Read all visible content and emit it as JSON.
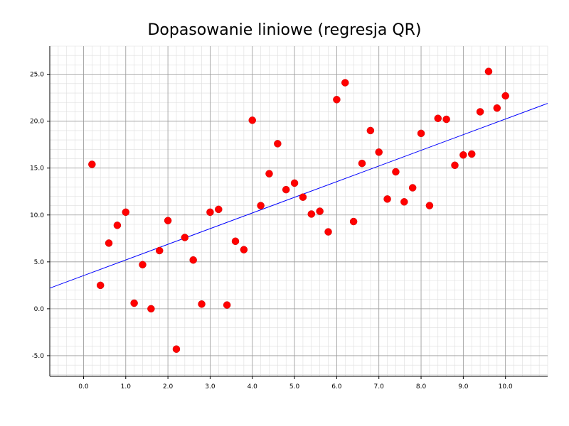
{
  "chart_data": {
    "type": "scatter",
    "title": "Dopasowanie liniowe (regresja QR)",
    "xlabel": "",
    "ylabel": "",
    "xlim": [
      -0.8,
      11.0
    ],
    "ylim": [
      -7.2,
      28.0
    ],
    "grid": true,
    "minor_grid": true,
    "x_ticks": [
      "0.0",
      "1.0",
      "2.0",
      "3.0",
      "4.0",
      "5.0",
      "6.0",
      "7.0",
      "8.0",
      "9.0",
      "10.0"
    ],
    "y_ticks": [
      "-5.0",
      "0.0",
      "5.0",
      "10.0",
      "15.0",
      "20.0",
      "25.0"
    ],
    "colors": {
      "points": "#ff0000",
      "fit_line": "#0000ff",
      "major_grid": "#999999",
      "minor_grid": "#dddddd"
    },
    "series": [
      {
        "kind": "points",
        "x": [
          0.2,
          0.4,
          0.6,
          0.8,
          1.0,
          1.2,
          1.4,
          1.6,
          1.8,
          2.0,
          2.2,
          2.4,
          2.6,
          2.8,
          3.0,
          3.2,
          3.4,
          3.6,
          3.8,
          4.0,
          4.2,
          4.4,
          4.6,
          4.8,
          5.0,
          5.2,
          5.4,
          5.6,
          5.8,
          6.0,
          6.2,
          6.4,
          6.6,
          6.8,
          7.0,
          7.2,
          7.4,
          7.6,
          7.8,
          8.0,
          8.2,
          8.4,
          8.6,
          8.8,
          9.0,
          9.2,
          9.4,
          9.6,
          9.8,
          10.0
        ],
        "y": [
          15.4,
          2.5,
          7.0,
          8.9,
          10.3,
          0.6,
          4.7,
          0.0,
          6.2,
          9.4,
          -4.3,
          7.6,
          5.2,
          0.5,
          10.3,
          10.6,
          0.4,
          7.2,
          6.3,
          20.1,
          11.0,
          14.4,
          17.6,
          12.7,
          13.4,
          11.9,
          10.1,
          10.4,
          8.2,
          22.3,
          24.1,
          9.3,
          15.5,
          19.0,
          16.7,
          11.7,
          14.6,
          11.4,
          12.9,
          18.7,
          11.0,
          20.3,
          20.2,
          15.3,
          16.4,
          16.5,
          21.0,
          25.3,
          21.4,
          22.7
        ]
      },
      {
        "kind": "line",
        "x": [
          -0.8,
          11.0
        ],
        "y": [
          2.2,
          21.9
        ]
      }
    ]
  }
}
